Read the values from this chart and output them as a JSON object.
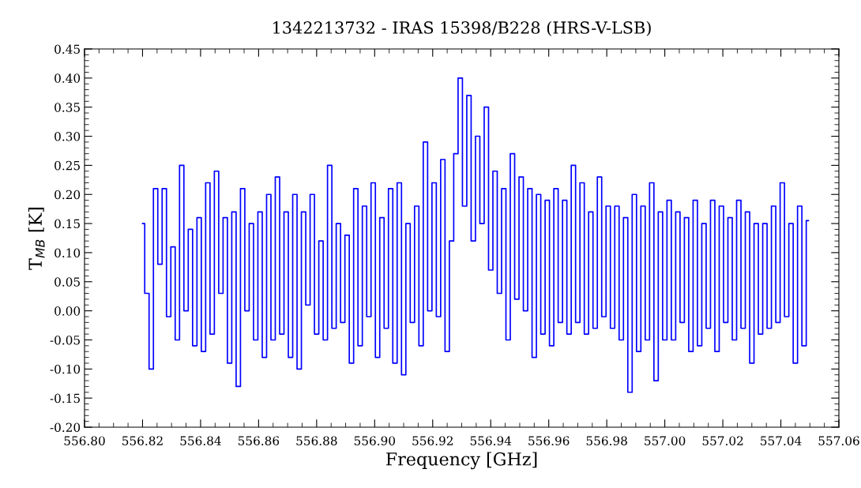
{
  "chart_data": {
    "type": "step",
    "title": "1342213732 - IRAS 15398/B228 (HRS-V-LSB)",
    "xlabel": "Frequency [GHz]",
    "ylabel": "T$_{MB}$ [K]",
    "grid": false,
    "marker": "none",
    "line_style": "solid",
    "xlim": [
      556.8,
      557.06
    ],
    "xticks": [
      {
        "value": 556.8,
        "label": "556.80"
      },
      {
        "value": 556.82,
        "label": "556.82"
      },
      {
        "value": 556.84,
        "label": "556.84"
      },
      {
        "value": 556.86,
        "label": "556.86"
      },
      {
        "value": 556.88,
        "label": "556.88"
      },
      {
        "value": 556.9,
        "label": "556.90"
      },
      {
        "value": 556.92,
        "label": "556.92"
      },
      {
        "value": 556.94,
        "label": "556.94"
      },
      {
        "value": 556.96,
        "label": "556.96"
      },
      {
        "value": 556.98,
        "label": "556.98"
      },
      {
        "value": 557.0,
        "label": "557.00"
      },
      {
        "value": 557.02,
        "label": "557.02"
      },
      {
        "value": 557.04,
        "label": "557.04"
      },
      {
        "value": 557.06,
        "label": "557.06"
      }
    ],
    "ylim": [
      -0.2,
      0.45
    ],
    "yticks": [
      {
        "value": -0.2,
        "label": "-0.20"
      },
      {
        "value": -0.15,
        "label": "-0.15"
      },
      {
        "value": -0.1,
        "label": "-0.10"
      },
      {
        "value": -0.05,
        "label": "-0.05"
      },
      {
        "value": 0.0,
        "label": "0.00"
      },
      {
        "value": 0.05,
        "label": "0.05"
      },
      {
        "value": 0.1,
        "label": "0.10"
      },
      {
        "value": 0.15,
        "label": "0.15"
      },
      {
        "value": 0.2,
        "label": "0.20"
      },
      {
        "value": 0.25,
        "label": "0.25"
      },
      {
        "value": 0.3,
        "label": "0.30"
      },
      {
        "value": 0.35,
        "label": "0.35"
      },
      {
        "value": 0.4,
        "label": "0.40"
      },
      {
        "value": 0.45,
        "label": "0.45"
      }
    ],
    "series": [
      {
        "color": "#0000ff",
        "x": [
          556.82,
          556.8215,
          556.823,
          556.8245,
          556.826,
          556.8275,
          556.829,
          556.8305,
          556.832,
          556.8335,
          556.835,
          556.8365,
          556.838,
          556.8395,
          556.841,
          556.8425,
          556.844,
          556.8455,
          556.847,
          556.8485,
          556.85,
          556.8515,
          556.853,
          556.8545,
          556.856,
          556.8575,
          556.859,
          556.8605,
          556.862,
          556.8635,
          556.865,
          556.8665,
          556.868,
          556.8695,
          556.871,
          556.8725,
          556.874,
          556.8755,
          556.877,
          556.8785,
          556.88,
          556.8815,
          556.883,
          556.8845,
          556.886,
          556.8875,
          556.889,
          556.8905,
          556.892,
          556.8935,
          556.895,
          556.8965,
          556.898,
          556.8995,
          556.901,
          556.9025,
          556.904,
          556.9055,
          556.907,
          556.9085,
          556.91,
          556.9115,
          556.913,
          556.9145,
          556.916,
          556.9175,
          556.919,
          556.9205,
          556.922,
          556.9235,
          556.925,
          556.9265,
          556.928,
          556.9295,
          556.931,
          556.9325,
          556.934,
          556.9355,
          556.937,
          556.9385,
          556.94,
          556.9415,
          556.943,
          556.9445,
          556.946,
          556.9475,
          556.949,
          556.9505,
          556.952,
          556.9535,
          556.955,
          556.9565,
          556.958,
          556.9595,
          556.961,
          556.9625,
          556.964,
          556.9655,
          556.967,
          556.9685,
          556.97,
          556.9715,
          556.973,
          556.9745,
          556.976,
          556.9775,
          556.979,
          556.9805,
          556.982,
          556.9835,
          556.985,
          556.9865,
          556.988,
          556.9895,
          556.991,
          556.9925,
          556.994,
          556.9955,
          556.997,
          556.9985,
          557.0,
          557.0015,
          557.003,
          557.0045,
          557.006,
          557.0075,
          557.009,
          557.0105,
          557.012,
          557.0135,
          557.015,
          557.0165,
          557.018,
          557.0195,
          557.021,
          557.0225,
          557.024,
          557.0255,
          557.027,
          557.0285,
          557.03,
          557.0315,
          557.033,
          557.0345,
          557.036,
          557.0375,
          557.039,
          557.0405,
          557.042,
          557.0435,
          557.045,
          557.0465,
          557.048,
          557.0495
        ],
        "values": [
          0.15,
          0.03,
          -0.1,
          0.21,
          0.08,
          0.21,
          -0.01,
          0.11,
          -0.05,
          0.25,
          0.0,
          0.14,
          -0.06,
          0.16,
          -0.07,
          0.22,
          -0.04,
          0.24,
          0.03,
          0.16,
          -0.09,
          0.17,
          -0.13,
          0.21,
          0.0,
          0.15,
          -0.05,
          0.17,
          -0.08,
          0.2,
          -0.05,
          0.23,
          -0.04,
          0.17,
          -0.08,
          0.2,
          -0.1,
          0.17,
          0.01,
          0.2,
          -0.04,
          0.12,
          -0.05,
          0.25,
          -0.03,
          0.15,
          -0.02,
          0.13,
          -0.09,
          0.21,
          -0.06,
          0.18,
          -0.01,
          0.22,
          -0.08,
          0.16,
          -0.03,
          0.21,
          -0.09,
          0.22,
          -0.11,
          0.15,
          -0.02,
          0.18,
          -0.06,
          0.29,
          0.0,
          0.22,
          -0.01,
          0.26,
          -0.07,
          0.12,
          0.27,
          0.4,
          0.18,
          0.37,
          0.12,
          0.3,
          0.15,
          0.35,
          0.07,
          0.24,
          0.03,
          0.21,
          -0.05,
          0.27,
          0.02,
          0.23,
          0.0,
          0.21,
          -0.08,
          0.2,
          -0.04,
          0.19,
          -0.06,
          0.21,
          -0.02,
          0.19,
          -0.04,
          0.25,
          -0.02,
          0.22,
          -0.04,
          0.17,
          -0.03,
          0.23,
          -0.01,
          0.18,
          -0.03,
          0.18,
          -0.05,
          0.16,
          -0.14,
          0.2,
          -0.07,
          0.18,
          -0.05,
          0.22,
          -0.12,
          0.17,
          -0.05,
          0.19,
          -0.05,
          0.17,
          -0.02,
          0.16,
          -0.07,
          0.19,
          -0.06,
          0.15,
          -0.03,
          0.19,
          -0.07,
          0.18,
          -0.02,
          0.16,
          -0.05,
          0.19,
          -0.03,
          0.17,
          -0.09,
          0.15,
          -0.04,
          0.15,
          -0.03,
          0.18,
          -0.02,
          0.22,
          -0.01,
          0.15,
          -0.09,
          0.18,
          -0.06,
          0.155
        ]
      }
    ]
  }
}
